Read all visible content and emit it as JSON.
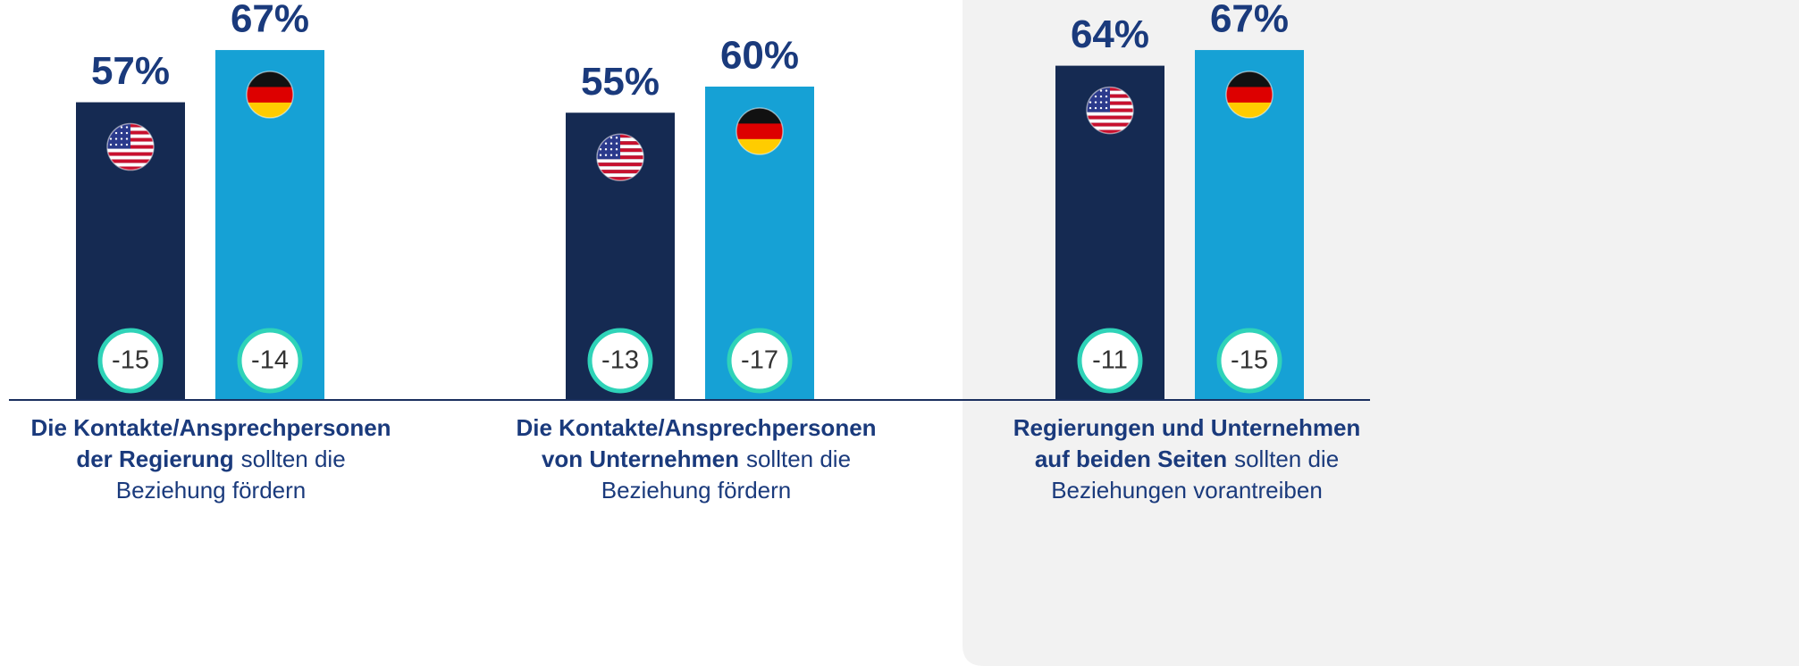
{
  "chart_data": {
    "type": "bar",
    "categories": [
      [
        [
          {
            "text": "Die Kontakte/Ansprechpersonen",
            "bold": true
          }
        ],
        [
          {
            "text": "der Regierung",
            "bold": true
          },
          {
            "text": "sollten die",
            "bold": false
          }
        ],
        [
          {
            "text": "Beziehung fördern",
            "bold": false
          }
        ]
      ],
      [
        [
          {
            "text": "Die Kontakte/Ansprechpersonen",
            "bold": true
          }
        ],
        [
          {
            "text": "von Unternehmen",
            "bold": true
          },
          {
            "text": "sollten die",
            "bold": false
          }
        ],
        [
          {
            "text": "Beziehung fördern",
            "bold": false
          }
        ]
      ],
      [
        [
          {
            "text": "Regierungen und Unternehmen",
            "bold": true
          }
        ],
        [
          {
            "text": "auf beiden Seiten",
            "bold": true
          },
          {
            "text": "sollten die",
            "bold": false
          }
        ],
        [
          {
            "text": "Beziehungen vorantreiben",
            "bold": false
          }
        ]
      ]
    ],
    "series": [
      {
        "color": "#152a52",
        "flag": "us",
        "values": [
          57,
          55,
          64
        ],
        "value_labels": [
          "57%",
          "55%",
          "64%"
        ],
        "changes": [
          -15,
          -13,
          -11
        ]
      },
      {
        "color": "#16a1d5",
        "flag": "de",
        "values": [
          67,
          60,
          67
        ],
        "value_labels": [
          "67%",
          "60%",
          "67%"
        ],
        "changes": [
          -14,
          -17,
          -15
        ]
      }
    ],
    "highlight": 2
  }
}
